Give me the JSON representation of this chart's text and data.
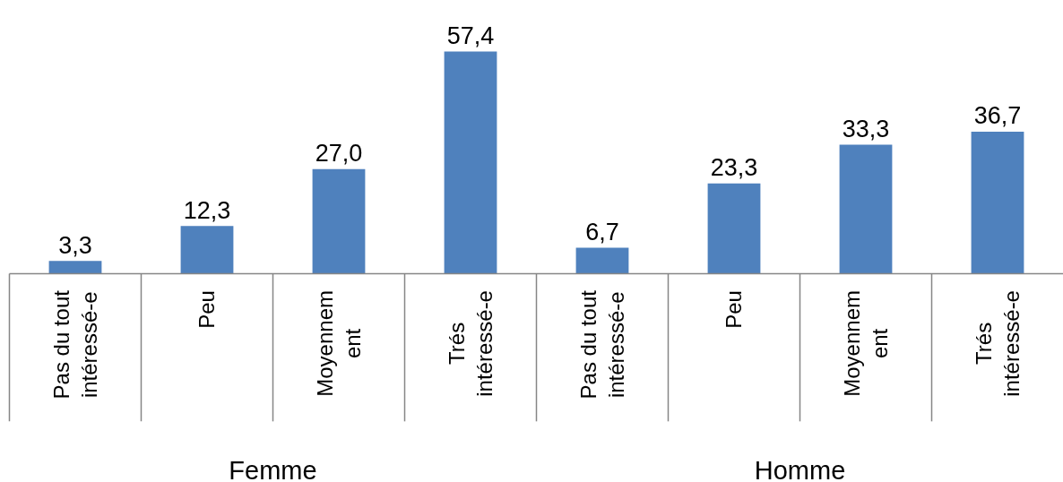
{
  "chart_data": {
    "type": "bar",
    "categories": [
      "Pas du tout\nintéressé-e",
      "Peu",
      "Moyennem\nent",
      "Trés\nintéressé-e",
      "Pas du tout\nintéressé-e",
      "Peu",
      "Moyennem\nent",
      "Trés\nintéressé-e"
    ],
    "values": [
      3.3,
      12.3,
      27.0,
      57.4,
      6.7,
      23.3,
      33.3,
      36.7
    ],
    "value_labels": [
      "3,3",
      "12,3",
      "27,0",
      "57,4",
      "6,7",
      "23,3",
      "33,3",
      "36,7"
    ],
    "color": "#4f81bd",
    "annotations": [
      "Femme",
      "Homme"
    ]
  }
}
